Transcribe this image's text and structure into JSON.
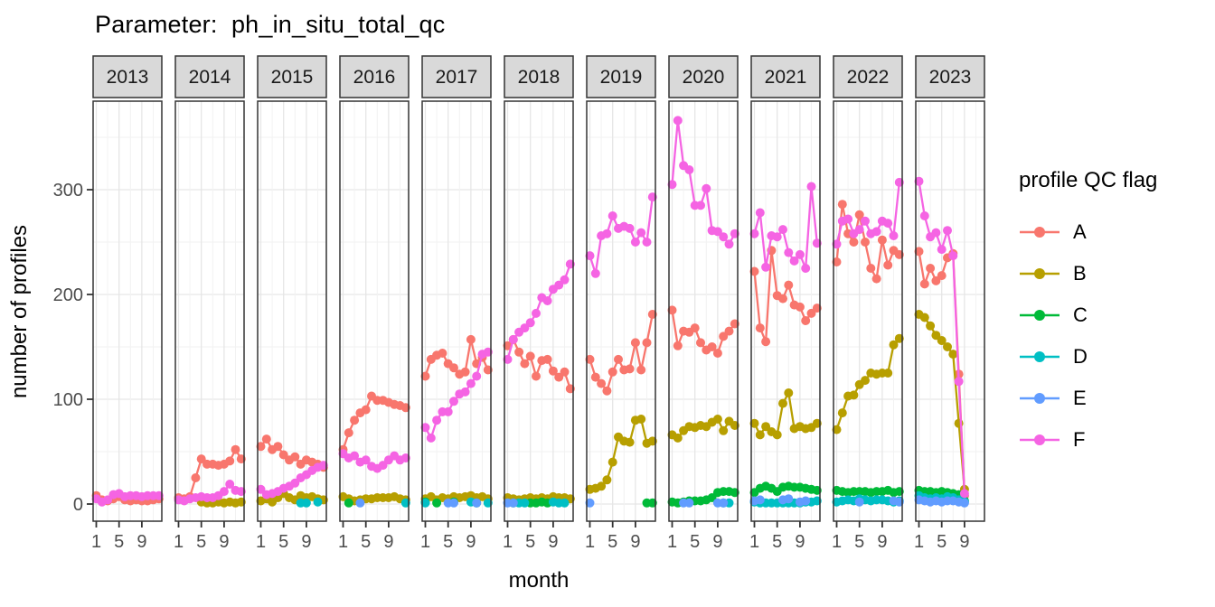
{
  "title": "Parameter:  ph_in_situ_total_qc",
  "x_axis": {
    "label": "month",
    "ticks": [
      "1",
      "5",
      "9"
    ],
    "tick_months": [
      1,
      5,
      9
    ]
  },
  "y_axis": {
    "label": "number of profiles",
    "ticks": [
      0,
      100,
      200,
      300
    ],
    "minor_ticks": [
      50,
      150,
      250,
      350
    ]
  },
  "legend": {
    "title": "profile QC flag",
    "entries": [
      {
        "label": "A",
        "color": "#F8766D"
      },
      {
        "label": "B",
        "color": "#B79F00"
      },
      {
        "label": "C",
        "color": "#00BA38"
      },
      {
        "label": "D",
        "color": "#00BFC4"
      },
      {
        "label": "E",
        "color": "#619CFF"
      },
      {
        "label": "F",
        "color": "#F564E3"
      }
    ]
  },
  "style": {
    "strip_fill": "#D9D9D9",
    "border_color": "#333333",
    "grid_major": "#E6E6E6",
    "grid_minor": "#F2F2F2",
    "tick_color": "#333333"
  },
  "chart_data": {
    "type": "line",
    "facet_by": "year",
    "xlabel": "month",
    "ylabel": "number of profiles",
    "x_domain": [
      1,
      12
    ],
    "ylim": [
      0,
      384
    ],
    "facets": [
      {
        "year": "2013",
        "series": {
          "A": [
            8,
            4,
            3,
            5,
            7,
            4,
            3,
            4,
            3,
            3,
            4,
            5
          ],
          "F": [
            5,
            2,
            4,
            9,
            10,
            7,
            8,
            8,
            7,
            8,
            8,
            8
          ]
        }
      },
      {
        "year": "2014",
        "series": {
          "A": [
            6,
            5,
            7,
            25,
            43,
            38,
            38,
            37,
            38,
            41,
            52,
            43
          ],
          "B": [
            null,
            null,
            null,
            null,
            2,
            1,
            1,
            2,
            1,
            2,
            1,
            2
          ],
          "F": [
            4,
            3,
            5,
            6,
            7,
            6,
            6,
            8,
            12,
            19,
            13,
            12
          ]
        }
      },
      {
        "year": "2015",
        "series": {
          "A": [
            55,
            62,
            52,
            55,
            47,
            42,
            45,
            38,
            42,
            40,
            38,
            35
          ],
          "B": [
            3,
            5,
            2,
            6,
            10,
            6,
            4,
            8,
            6,
            7,
            5,
            4
          ],
          "D": [
            null,
            null,
            null,
            null,
            null,
            null,
            null,
            1,
            1,
            null,
            2,
            null
          ],
          "F": [
            14,
            9,
            10,
            12,
            15,
            17,
            20,
            25,
            28,
            32,
            35,
            37
          ]
        }
      },
      {
        "year": "2016",
        "series": {
          "A": [
            52,
            68,
            80,
            87,
            90,
            103,
            99,
            99,
            97,
            95,
            94,
            92
          ],
          "B": [
            7,
            5,
            3,
            4,
            5,
            5,
            6,
            6,
            6,
            7,
            5,
            4
          ],
          "C": [
            null,
            1,
            null,
            null,
            null,
            null,
            null,
            null,
            null,
            null,
            null,
            null
          ],
          "D": [
            null,
            null,
            null,
            null,
            null,
            null,
            null,
            null,
            null,
            null,
            null,
            1
          ],
          "E": [
            null,
            null,
            null,
            1,
            null,
            null,
            null,
            null,
            null,
            null,
            null,
            null
          ],
          "F": [
            48,
            44,
            46,
            40,
            42,
            36,
            34,
            37,
            42,
            46,
            42,
            44
          ]
        }
      },
      {
        "year": "2017",
        "series": {
          "A": [
            122,
            138,
            142,
            144,
            134,
            130,
            124,
            126,
            157,
            134,
            140,
            128
          ],
          "B": [
            5,
            7,
            4,
            6,
            5,
            7,
            6,
            7,
            8,
            6,
            7,
            5
          ],
          "C": [
            2,
            null,
            1,
            null,
            null,
            2,
            null,
            null,
            null,
            1,
            null,
            null
          ],
          "D": [
            1,
            null,
            null,
            null,
            null,
            null,
            null,
            null,
            2,
            null,
            null,
            1
          ],
          "E": [
            null,
            null,
            null,
            null,
            1,
            1,
            null,
            null,
            null,
            1,
            null,
            null
          ],
          "F": [
            73,
            63,
            80,
            88,
            88,
            98,
            105,
            107,
            115,
            122,
            143,
            145
          ]
        }
      },
      {
        "year": "2018",
        "series": {
          "A": [
            151,
            157,
            145,
            134,
            141,
            122,
            137,
            138,
            127,
            121,
            126,
            110
          ],
          "B": [
            6,
            5,
            4,
            5,
            6,
            5,
            6,
            5,
            7,
            6,
            6,
            5
          ],
          "C": [
            null,
            1,
            null,
            null,
            1,
            1,
            2,
            1,
            null,
            null,
            null,
            null
          ],
          "D": [
            null,
            null,
            1,
            1,
            null,
            null,
            null,
            null,
            2,
            1,
            1,
            null
          ],
          "E": [
            1,
            1,
            null,
            null,
            null,
            null,
            null,
            null,
            null,
            null,
            null,
            null
          ],
          "F": [
            138,
            157,
            164,
            168,
            173,
            182,
            197,
            194,
            205,
            209,
            214,
            229
          ]
        }
      },
      {
        "year": "2019",
        "series": {
          "A": [
            138,
            121,
            115,
            108,
            126,
            138,
            128,
            129,
            154,
            128,
            154,
            181
          ],
          "B": [
            14,
            15,
            17,
            23,
            40,
            64,
            60,
            59,
            80,
            81,
            58,
            60
          ],
          "C": [
            null,
            null,
            null,
            null,
            null,
            null,
            null,
            null,
            null,
            null,
            1,
            1
          ],
          "E": [
            1,
            null,
            null,
            null,
            null,
            null,
            null,
            null,
            null,
            null,
            null,
            null
          ],
          "F": [
            237,
            220,
            256,
            258,
            275,
            263,
            265,
            263,
            250,
            259,
            250,
            293
          ]
        }
      },
      {
        "year": "2020",
        "series": {
          "A": [
            185,
            151,
            165,
            164,
            168,
            154,
            147,
            150,
            144,
            160,
            165,
            172
          ],
          "B": [
            66,
            63,
            70,
            74,
            73,
            75,
            74,
            78,
            81,
            70,
            79,
            75
          ],
          "C": [
            2,
            1,
            2,
            3,
            3,
            3,
            4,
            6,
            11,
            12,
            12,
            11
          ],
          "D": [
            null,
            null,
            null,
            null,
            null,
            null,
            null,
            null,
            null,
            1,
            1,
            null
          ],
          "E": [
            null,
            null,
            1,
            1,
            null,
            null,
            null,
            null,
            1,
            1,
            null,
            null
          ],
          "F": [
            305,
            366,
            323,
            319,
            285,
            285,
            301,
            261,
            260,
            255,
            248,
            258
          ]
        }
      },
      {
        "year": "2021",
        "series": {
          "A": [
            222,
            168,
            155,
            242,
            199,
            196,
            209,
            190,
            188,
            175,
            182,
            187
          ],
          "B": [
            77,
            66,
            74,
            69,
            66,
            96,
            106,
            72,
            74,
            72,
            73,
            77
          ],
          "C": [
            11,
            15,
            17,
            15,
            12,
            16,
            17,
            16,
            16,
            15,
            14,
            13
          ],
          "D": [
            2,
            1,
            1,
            1,
            1,
            1,
            1,
            1,
            1,
            2,
            2,
            3
          ],
          "E": [
            3,
            4,
            null,
            null,
            null,
            4,
            5,
            null,
            2,
            3,
            null,
            null
          ],
          "F": [
            258,
            278,
            226,
            256,
            255,
            262,
            240,
            232,
            238,
            225,
            303,
            249
          ]
        }
      },
      {
        "year": "2022",
        "series": {
          "A": [
            231,
            286,
            258,
            250,
            276,
            250,
            225,
            215,
            252,
            228,
            242,
            238
          ],
          "B": [
            71,
            87,
            103,
            104,
            114,
            118,
            125,
            124,
            125,
            125,
            152,
            158
          ],
          "C": [
            13,
            12,
            11,
            12,
            12,
            12,
            11,
            12,
            12,
            13,
            11,
            12
          ],
          "D": [
            2,
            3,
            4,
            3,
            5,
            4,
            3,
            4,
            4,
            3,
            2,
            3
          ],
          "E": [
            null,
            null,
            null,
            null,
            2,
            null,
            null,
            null,
            null,
            null,
            3,
            2
          ],
          "F": [
            248,
            270,
            272,
            258,
            262,
            270,
            258,
            260,
            270,
            268,
            256,
            307
          ]
        }
      },
      {
        "year": "2023",
        "series": {
          "A": [
            241,
            210,
            225,
            213,
            218,
            235,
            239,
            124,
            8
          ],
          "B": [
            181,
            178,
            170,
            161,
            156,
            150,
            143,
            77,
            14
          ],
          "C": [
            13,
            12,
            12,
            11,
            12,
            11,
            10,
            9,
            3
          ],
          "D": [
            8,
            6,
            5,
            6,
            5,
            7,
            6,
            4,
            2
          ],
          "E": [
            4,
            3,
            2,
            3,
            2,
            3,
            3,
            2,
            1
          ],
          "F": [
            308,
            275,
            255,
            259,
            243,
            261,
            237,
            117,
            10
          ]
        }
      }
    ]
  }
}
